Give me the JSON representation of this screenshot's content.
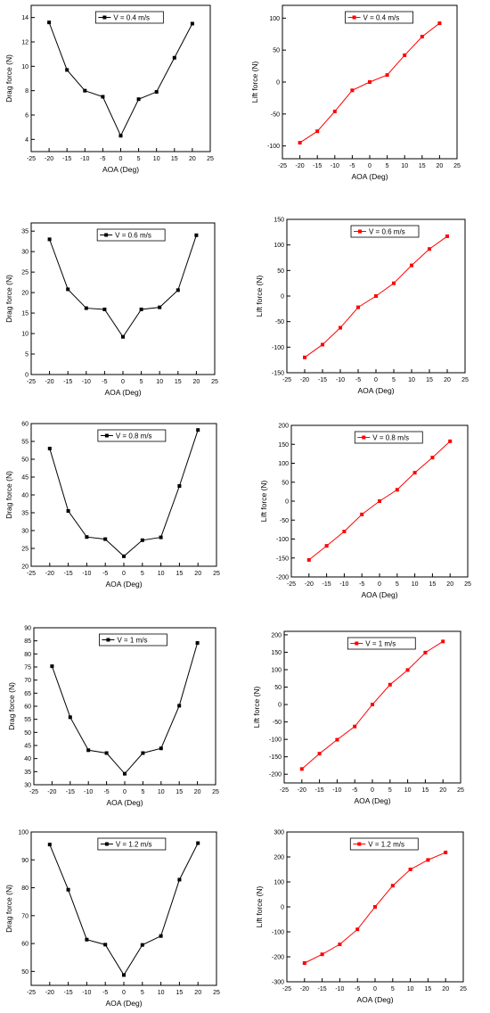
{
  "chart_data": [
    {
      "type": "line",
      "x": [
        -20,
        -15,
        -10,
        -5,
        0,
        5,
        10,
        15,
        20
      ],
      "xlim": [
        -25,
        25
      ],
      "xticks": [
        -25,
        -20,
        -15,
        -10,
        -5,
        0,
        5,
        10,
        15,
        20,
        25
      ],
      "ylim": [
        3,
        15
      ],
      "yticks": [
        4,
        6,
        8,
        10,
        12,
        14
      ],
      "xlabel": "AOA (Deg)",
      "ylabel": "Drag force (N)",
      "series": [
        {
          "name": "V = 0.4 m/s",
          "color": "#000000",
          "values": [
            13.6,
            9.7,
            8.0,
            7.5,
            4.3,
            7.3,
            7.9,
            10.7,
            13.5
          ]
        }
      ],
      "legend": "top-center"
    },
    {
      "type": "line",
      "x": [
        -20,
        -15,
        -10,
        -5,
        0,
        5,
        10,
        15,
        20
      ],
      "xlim": [
        -25,
        25
      ],
      "xticks": [
        -25,
        -20,
        -15,
        -10,
        -5,
        0,
        5,
        10,
        15,
        20,
        25
      ],
      "ylim": [
        -120,
        120
      ],
      "yticks": [
        -100,
        -50,
        0,
        50,
        100
      ],
      "xlabel": "AOA (Deg)",
      "ylabel": "Lift force (N)",
      "series": [
        {
          "name": "V = 0.4 m/s",
          "color": "#ff0000",
          "values": [
            -95,
            -77,
            -46,
            -13,
            0,
            11,
            42,
            71,
            92
          ]
        }
      ],
      "legend": "top-center"
    },
    {
      "type": "line",
      "x": [
        -20,
        -15,
        -10,
        -5,
        0,
        5,
        10,
        15,
        20
      ],
      "xlim": [
        -25,
        25
      ],
      "xticks": [
        -25,
        -20,
        -15,
        -10,
        -5,
        0,
        5,
        10,
        15,
        20,
        25
      ],
      "ylim": [
        0,
        37
      ],
      "yticks": [
        0,
        5,
        10,
        15,
        20,
        25,
        30,
        35
      ],
      "xlabel": "AOA (Deg)",
      "ylabel": "Drag force (N)",
      "series": [
        {
          "name": "V = 0.6 m/s",
          "color": "#000000",
          "values": [
            33,
            20.8,
            16.2,
            15.9,
            9.2,
            15.9,
            16.4,
            20.6,
            34
          ]
        }
      ],
      "legend": "top-center"
    },
    {
      "type": "line",
      "x": [
        -20,
        -15,
        -10,
        -5,
        0,
        5,
        10,
        15,
        20
      ],
      "xlim": [
        -25,
        25
      ],
      "xticks": [
        -25,
        -20,
        -15,
        -10,
        -5,
        0,
        5,
        10,
        15,
        20,
        25
      ],
      "ylim": [
        -150,
        150
      ],
      "yticks": [
        -150,
        -100,
        -50,
        0,
        50,
        100,
        150
      ],
      "xlabel": "AOA (Deg)",
      "ylabel": "Lift force (N)",
      "series": [
        {
          "name": "V = 0.6 m/s",
          "color": "#ff0000",
          "values": [
            -120,
            -95,
            -62,
            -22,
            0,
            25,
            60,
            92,
            117
          ]
        }
      ],
      "legend": "top-center"
    },
    {
      "type": "line",
      "x": [
        -20,
        -15,
        -10,
        -5,
        0,
        5,
        10,
        15,
        20
      ],
      "xlim": [
        -25,
        25
      ],
      "xticks": [
        -25,
        -20,
        -15,
        -10,
        -5,
        0,
        5,
        10,
        15,
        20,
        25
      ],
      "ylim": [
        20,
        60
      ],
      "yticks": [
        20,
        25,
        30,
        35,
        40,
        45,
        50,
        55,
        60
      ],
      "xlabel": "AOA (Deg)",
      "ylabel": "Drag force (N)",
      "series": [
        {
          "name": "V = 0.8 m/s",
          "color": "#000000",
          "values": [
            53,
            35.5,
            28.2,
            27.6,
            22.8,
            27.3,
            28.1,
            42.5,
            58.2
          ]
        }
      ],
      "legend": "top-center"
    },
    {
      "type": "line",
      "x": [
        -20,
        -15,
        -10,
        -5,
        0,
        5,
        10,
        15,
        20
      ],
      "xlim": [
        -25,
        25
      ],
      "xticks": [
        -25,
        -20,
        -15,
        -10,
        -5,
        0,
        5,
        10,
        15,
        20,
        25
      ],
      "ylim": [
        -200,
        200
      ],
      "yticks": [
        -200,
        -150,
        -100,
        -50,
        0,
        50,
        100,
        150,
        200
      ],
      "xlabel": "AOA (Deg)",
      "ylabel": "Lift force (N)",
      "series": [
        {
          "name": "V = 0.8 m/s",
          "color": "#ff0000",
          "values": [
            -155,
            -118,
            -80,
            -35,
            0,
            30,
            75,
            115,
            158
          ]
        }
      ],
      "legend": "top-center"
    },
    {
      "type": "line",
      "x": [
        -20,
        -15,
        -10,
        -5,
        0,
        5,
        10,
        15,
        20
      ],
      "xlim": [
        -25,
        25
      ],
      "xticks": [
        -25,
        -20,
        -15,
        -10,
        -5,
        0,
        5,
        10,
        15,
        20,
        25
      ],
      "ylim": [
        30,
        90
      ],
      "yticks": [
        30,
        35,
        40,
        45,
        50,
        55,
        60,
        65,
        70,
        75,
        80,
        85,
        90
      ],
      "xlabel": "AOA (Deg)",
      "ylabel": "Drag force (N)",
      "series": [
        {
          "name": "V = 1 m/s",
          "color": "#000000",
          "values": [
            75.3,
            55.8,
            43.2,
            42.1,
            34.2,
            42.1,
            43.9,
            60.2,
            84.2
          ]
        }
      ],
      "legend": "top-center"
    },
    {
      "type": "line",
      "x": [
        -20,
        -15,
        -10,
        -5,
        0,
        5,
        10,
        15,
        20
      ],
      "xlim": [
        -25,
        25
      ],
      "xticks": [
        -25,
        -20,
        -15,
        -10,
        -5,
        0,
        5,
        10,
        15,
        20,
        25
      ],
      "ylim": [
        -225,
        210
      ],
      "yticks": [
        -200,
        -150,
        -100,
        -50,
        0,
        50,
        100,
        150,
        200
      ],
      "xlabel": "AOA (Deg)",
      "ylabel": "Lift force (N)",
      "series": [
        {
          "name": "V = 1 m/s",
          "color": "#ff0000",
          "values": [
            -185,
            -141,
            -101,
            -63,
            0,
            57,
            99,
            149,
            181
          ]
        }
      ],
      "legend": "top-center"
    },
    {
      "type": "line",
      "x": [
        -20,
        -15,
        -10,
        -5,
        0,
        5,
        10,
        15,
        20
      ],
      "xlim": [
        -25,
        25
      ],
      "xticks": [
        -25,
        -20,
        -15,
        -10,
        -5,
        0,
        5,
        10,
        15,
        20,
        25
      ],
      "ylim": [
        45,
        100
      ],
      "yticks": [
        50,
        60,
        70,
        80,
        90,
        100
      ],
      "xlabel": "AOA (Deg)",
      "ylabel": "Drag force (N)",
      "series": [
        {
          "name": "V = 1.2 m/s",
          "color": "#000000",
          "values": [
            95.5,
            79.3,
            61.4,
            59.6,
            48.7,
            59.5,
            62.7,
            82.9,
            96
          ]
        }
      ],
      "legend": "top-center"
    },
    {
      "type": "line",
      "x": [
        -20,
        -15,
        -10,
        -5,
        0,
        5,
        10,
        15,
        20
      ],
      "xlim": [
        -25,
        25
      ],
      "xticks": [
        -25,
        -20,
        -15,
        -10,
        -5,
        0,
        5,
        10,
        15,
        20,
        25
      ],
      "ylim": [
        -300,
        300
      ],
      "yticks": [
        -300,
        -200,
        -100,
        0,
        100,
        200,
        300
      ],
      "xlabel": "AOA (Deg)",
      "ylabel": "Lift force (N)",
      "series": [
        {
          "name": "V = 1.2 m/s",
          "color": "#ff0000",
          "values": [
            -225,
            -190,
            -150,
            -90,
            0,
            85,
            150,
            188,
            218
          ]
        }
      ],
      "legend": "top-center"
    }
  ]
}
